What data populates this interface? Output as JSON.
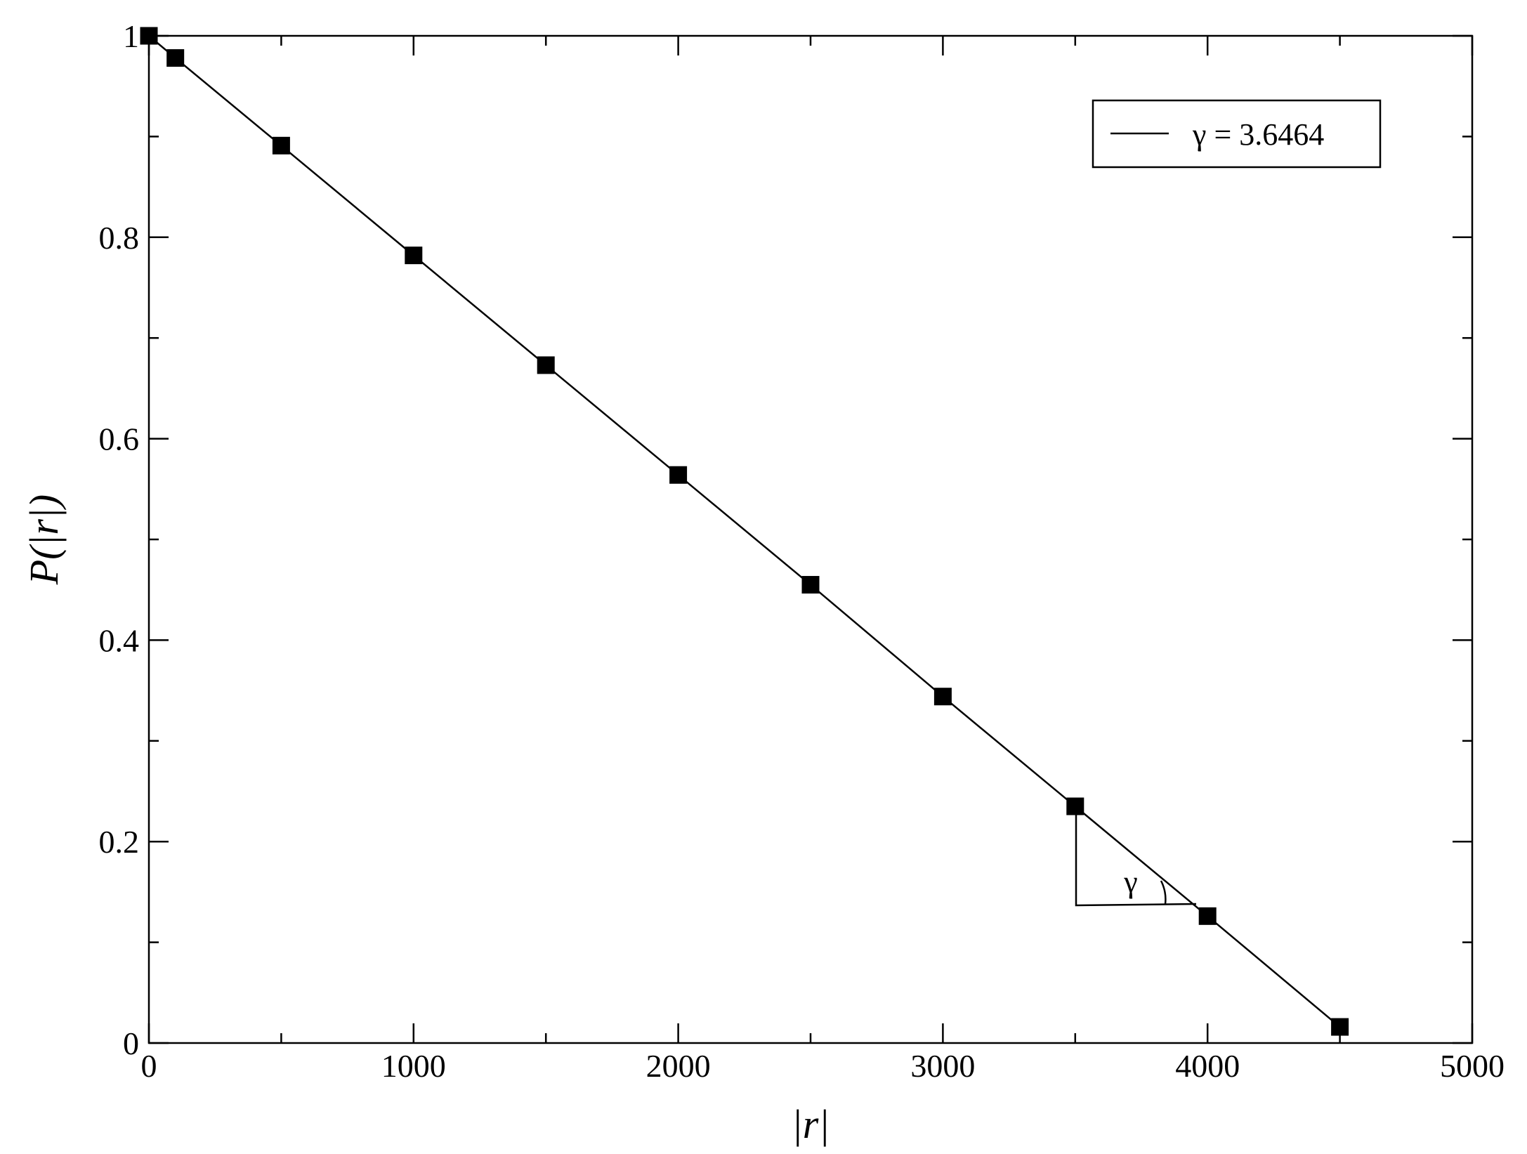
{
  "chart_data": {
    "type": "line",
    "x_label": "|r|",
    "y_label": "P(|r|)",
    "x": [
      0,
      100,
      500,
      1000,
      1500,
      2000,
      2500,
      3000,
      3500,
      4000,
      4500
    ],
    "series": [
      {
        "name": "γ = 3.6464",
        "color": "#000000",
        "values": [
          1,
          0.978,
          0.891,
          0.782,
          0.673,
          0.564,
          0.455,
          0.344,
          0.235,
          0.126,
          0.016
        ]
      }
    ],
    "xlim": [
      0,
      5000
    ],
    "xticks": [
      0,
      1000,
      2000,
      3000,
      4000,
      5000
    ],
    "xminorticks": [
      500,
      1500,
      2500,
      3500,
      4500
    ],
    "ylim": [
      0,
      1
    ],
    "yticks": [
      0,
      0.2,
      0.4,
      0.6,
      0.8,
      1
    ],
    "yminorticks": [
      0.1,
      0.3,
      0.5,
      0.7,
      0.9
    ],
    "markers": "square",
    "legend": "upper right",
    "annotation": "γ"
  }
}
